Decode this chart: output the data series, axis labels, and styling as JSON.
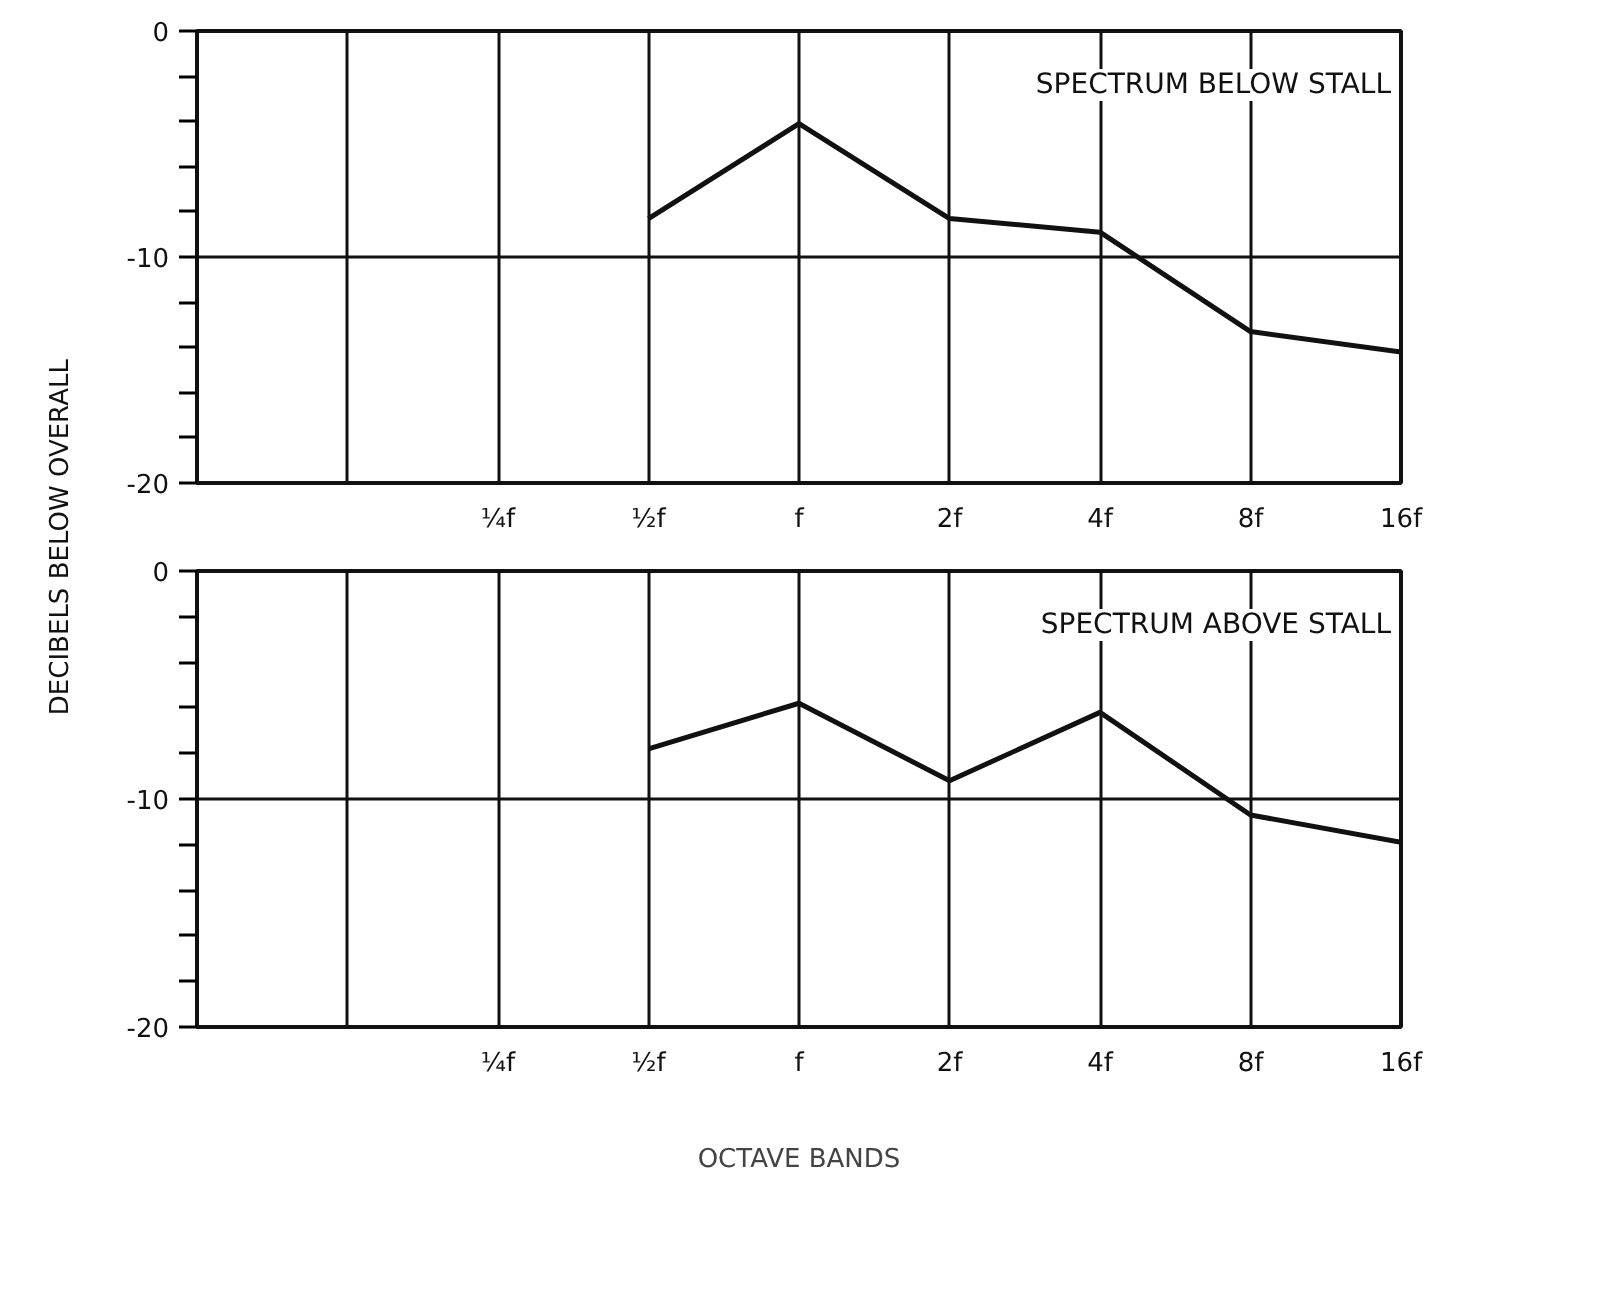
{
  "chart_data": [
    {
      "type": "line",
      "title": "SPECTRUM BELOW STALL",
      "ylabel": "DECIBELS  BELOW OVERALL",
      "categories": [
        null,
        null,
        "¼f",
        "½f",
        "f",
        "2f",
        "4f",
        "8f",
        "16f"
      ],
      "series": [
        {
          "color": "#111111",
          "values": [
            null,
            null,
            null,
            -8.3,
            -4.1,
            -8.3,
            -8.9,
            -13.3,
            -14.2
          ]
        }
      ],
      "ylim": [
        -20,
        0
      ],
      "yticks": [
        0,
        {
          "value": -2,
          "label": null
        },
        {
          "value": -4,
          "label": null
        },
        {
          "value": -6,
          "label": null
        },
        {
          "value": -8,
          "label": null
        },
        -10,
        {
          "value": -12,
          "label": null
        },
        {
          "value": -14,
          "label": null
        },
        {
          "value": -16,
          "label": null
        },
        {
          "value": -18,
          "label": null
        },
        -20
      ],
      "grid": true
    },
    {
      "type": "line",
      "title": "SPECTRUM ABOVE STALL",
      "xlabel": "OCTAVE BANDS",
      "categories": [
        null,
        null,
        "¼f",
        "½f",
        "f",
        "2f",
        "4f",
        "8f",
        "16f"
      ],
      "series": [
        {
          "color": "#111111",
          "values": [
            null,
            null,
            null,
            -7.8,
            -5.8,
            -9.2,
            -6.2,
            -10.7,
            -11.9
          ]
        }
      ],
      "ylim": [
        -20,
        0
      ],
      "yticks": [
        0,
        {
          "value": -2,
          "label": null
        },
        {
          "value": -4,
          "label": null
        },
        {
          "value": -6,
          "label": null
        },
        {
          "value": -8,
          "label": null
        },
        -10,
        {
          "value": -12,
          "label": null
        },
        {
          "value": -14,
          "label": null
        },
        {
          "value": -16,
          "label": null
        },
        {
          "value": -18,
          "label": null
        },
        -20
      ],
      "grid": true
    }
  ]
}
